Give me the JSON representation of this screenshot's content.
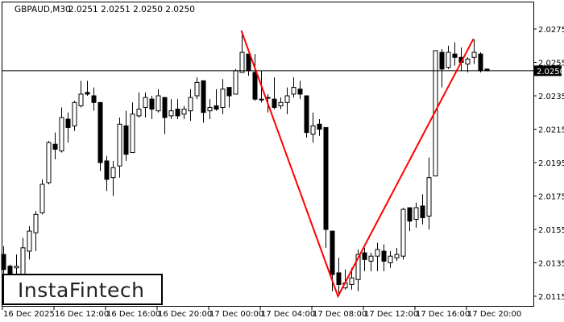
{
  "header": {
    "symbol": "GBPAUD,M30",
    "ohlc": "2.0251 2.0251 2.0250 2.0250"
  },
  "logo": {
    "text": "InstaFintech"
  },
  "current_price": {
    "label": "2.0250",
    "value": 2.025
  },
  "colors": {
    "pattern_line": "#ff0000",
    "bull_body": "#ffffff",
    "bear_body": "#000000",
    "price_label_bg": "#000000"
  },
  "chart_data": {
    "type": "candlestick",
    "title": "",
    "grid": false,
    "ylim": [
      2.01095,
      2.02917
    ],
    "y_ticks": [
      "2.0275",
      "2.0255",
      "2.0235",
      "2.0215",
      "2.0195",
      "2.0175",
      "2.0155",
      "2.0135",
      "2.0115"
    ],
    "x_ticks": [
      "16 Dec 2025",
      "16 Dec 12:00",
      "16 Dec 16:00",
      "16 Dec 20:00",
      "17 Dec 00:00",
      "17 Dec 04:00",
      "17 Dec 08:00",
      "17 Dec 12:00",
      "17 Dec 16:00",
      "17 Dec 20:00"
    ],
    "candle_fields": [
      "time",
      "open",
      "high",
      "low",
      "close"
    ],
    "candles": [
      [
        "16 Dec 08:00",
        2.014,
        2.0145,
        2.0126,
        2.0131
      ],
      [
        "16 Dec 08:30",
        2.0133,
        2.0134,
        2.0124,
        2.0128
      ],
      [
        "16 Dec 09:00",
        2.0132,
        2.014,
        2.0126,
        2.0133
      ],
      [
        "16 Dec 09:30",
        2.0128,
        2.015,
        2.0126,
        2.0144
      ],
      [
        "16 Dec 10:00",
        2.0142,
        2.0157,
        2.0137,
        2.0154
      ],
      [
        "16 Dec 10:30",
        2.0153,
        2.0166,
        2.0142,
        2.0164
      ],
      [
        "16 Dec 11:00",
        2.0165,
        2.0185,
        2.0164,
        2.0182
      ],
      [
        "16 Dec 11:30",
        2.0183,
        2.0208,
        2.0182,
        2.0207
      ],
      [
        "16 Dec 12:00",
        2.0206,
        2.0213,
        2.0197,
        2.0203
      ],
      [
        "16 Dec 12:30",
        2.0202,
        2.0228,
        2.0201,
        2.0222
      ],
      [
        "16 Dec 13:00",
        2.0221,
        2.0225,
        2.0207,
        2.0216
      ],
      [
        "16 Dec 13:30",
        2.0217,
        2.0232,
        2.0214,
        2.0231
      ],
      [
        "16 Dec 14:00",
        2.0229,
        2.0244,
        2.0228,
        2.0236
      ],
      [
        "16 Dec 14:30",
        2.0237,
        2.0244,
        2.0235,
        2.0236
      ],
      [
        "16 Dec 15:00",
        2.0235,
        2.024,
        2.0226,
        2.0231
      ],
      [
        "16 Dec 15:30",
        2.0231,
        2.0231,
        2.019,
        2.0195
      ],
      [
        "16 Dec 16:00",
        2.0196,
        2.0199,
        2.0178,
        2.0185
      ],
      [
        "16 Dec 16:30",
        2.0186,
        2.0196,
        2.0175,
        2.0192
      ],
      [
        "16 Dec 17:00",
        2.0193,
        2.0222,
        2.0186,
        2.0218
      ],
      [
        "16 Dec 17:30",
        2.0217,
        2.0226,
        2.0196,
        2.02
      ],
      [
        "16 Dec 18:00",
        2.0201,
        2.0231,
        2.0201,
        2.0224
      ],
      [
        "16 Dec 18:30",
        2.0223,
        2.0237,
        2.0222,
        2.0227
      ],
      [
        "16 Dec 19:00",
        2.0228,
        2.0237,
        2.0222,
        2.0234
      ],
      [
        "16 Dec 19:30",
        2.0233,
        2.0235,
        2.0221,
        2.0227
      ],
      [
        "16 Dec 20:00",
        2.0226,
        2.0239,
        2.0225,
        2.0235
      ],
      [
        "16 Dec 20:30",
        2.0234,
        2.0234,
        2.0212,
        2.0222
      ],
      [
        "16 Dec 21:00",
        2.0223,
        2.0233,
        2.0221,
        2.0226
      ],
      [
        "16 Dec 21:30",
        2.0227,
        2.0233,
        2.0221,
        2.0223
      ],
      [
        "16 Dec 22:00",
        2.0224,
        2.0229,
        2.0221,
        2.0227
      ],
      [
        "16 Dec 22:30",
        2.0226,
        2.0239,
        2.022,
        2.0234
      ],
      [
        "16 Dec 23:00",
        2.0235,
        2.0246,
        2.0233,
        2.0243
      ],
      [
        "16 Dec 23:30",
        2.0244,
        2.0244,
        2.0219,
        2.0225
      ],
      [
        "17 Dec 00:00",
        2.0226,
        2.0233,
        2.0221,
        2.0228
      ],
      [
        "17 Dec 00:30",
        2.0229,
        2.0239,
        2.0226,
        2.0227
      ],
      [
        "17 Dec 01:00",
        2.0228,
        2.0245,
        2.0224,
        2.0239
      ],
      [
        "17 Dec 01:30",
        2.024,
        2.024,
        2.0228,
        2.0235
      ],
      [
        "17 Dec 02:00",
        2.0236,
        2.0251,
        2.0236,
        2.025
      ],
      [
        "17 Dec 02:30",
        2.0249,
        2.0274,
        2.0249,
        2.0261
      ],
      [
        "17 Dec 03:00",
        2.026,
        2.026,
        2.0247,
        2.025
      ],
      [
        "17 Dec 03:30",
        2.0249,
        2.026,
        2.0232,
        2.0233
      ],
      [
        "17 Dec 04:00",
        2.0233,
        2.025,
        2.0231,
        2.0233
      ],
      [
        "17 Dec 04:30",
        2.0234,
        2.0236,
        2.0225,
        2.0234
      ],
      [
        "17 Dec 05:00",
        2.0233,
        2.0246,
        2.0227,
        2.0228
      ],
      [
        "17 Dec 05:30",
        2.0229,
        2.0234,
        2.0227,
        2.0231
      ],
      [
        "17 Dec 06:00",
        2.0231,
        2.024,
        2.0224,
        2.0235
      ],
      [
        "17 Dec 06:30",
        2.0236,
        2.0246,
        2.0234,
        2.024
      ],
      [
        "17 Dec 07:00",
        2.0239,
        2.0244,
        2.0233,
        2.0236
      ],
      [
        "17 Dec 07:30",
        2.0235,
        2.0235,
        2.021,
        2.0213
      ],
      [
        "17 Dec 08:00",
        2.0212,
        2.0225,
        2.0207,
        2.0217
      ],
      [
        "17 Dec 08:30",
        2.0218,
        2.0221,
        2.0211,
        2.0215
      ],
      [
        "17 Dec 09:00",
        2.0216,
        2.0216,
        2.0144,
        2.0155
      ],
      [
        "17 Dec 09:30",
        2.0154,
        2.0154,
        2.0118,
        2.0128
      ],
      [
        "17 Dec 10:00",
        2.0129,
        2.0138,
        2.0116,
        2.0122
      ],
      [
        "17 Dec 10:30",
        2.012,
        2.0131,
        2.0119,
        2.0123
      ],
      [
        "17 Dec 11:00",
        2.0122,
        2.0132,
        2.0119,
        2.0126
      ],
      [
        "17 Dec 11:30",
        2.0125,
        2.0143,
        2.0118,
        2.014
      ],
      [
        "17 Dec 12:00",
        2.0141,
        2.0144,
        2.013,
        2.0137
      ],
      [
        "17 Dec 12:30",
        2.0136,
        2.0141,
        2.013,
        2.0139
      ],
      [
        "17 Dec 13:00",
        2.0139,
        2.0147,
        2.013,
        2.0143
      ],
      [
        "17 Dec 13:30",
        2.0142,
        2.0146,
        2.013,
        2.0136
      ],
      [
        "17 Dec 14:00",
        2.0135,
        2.0142,
        2.0132,
        2.0139
      ],
      [
        "17 Dec 14:30",
        2.0138,
        2.0144,
        2.0136,
        2.014
      ],
      [
        "17 Dec 15:00",
        2.0139,
        2.0168,
        2.0137,
        2.0167
      ],
      [
        "17 Dec 15:30",
        2.0168,
        2.0168,
        2.0154,
        2.016
      ],
      [
        "17 Dec 16:00",
        2.0161,
        2.0171,
        2.0156,
        2.0168
      ],
      [
        "17 Dec 16:30",
        2.0169,
        2.0176,
        2.0158,
        2.0162
      ],
      [
        "17 Dec 17:00",
        2.0163,
        2.0198,
        2.0155,
        2.0186
      ],
      [
        "17 Dec 17:30",
        2.0187,
        2.0262,
        2.0187,
        2.0262
      ],
      [
        "17 Dec 18:00",
        2.0261,
        2.0263,
        2.024,
        2.0251
      ],
      [
        "17 Dec 18:30",
        2.0252,
        2.0265,
        2.0251,
        2.0261
      ],
      [
        "17 Dec 19:00",
        2.026,
        2.0267,
        2.0253,
        2.0258
      ],
      [
        "17 Dec 19:30",
        2.0258,
        2.0264,
        2.025,
        2.0255
      ],
      [
        "17 Dec 20:00",
        2.0254,
        2.0258,
        2.0249,
        2.0257
      ],
      [
        "17 Dec 20:30",
        2.0258,
        2.0269,
        2.0254,
        2.0261
      ],
      [
        "17 Dec 21:00",
        2.026,
        2.0261,
        2.0249,
        2.025
      ],
      [
        "17 Dec 21:30",
        2.0251,
        2.0251,
        2.025,
        2.025
      ]
    ],
    "pattern_line": [
      {
        "time": "17 Dec 02:30",
        "price": 2.0274
      },
      {
        "time": "17 Dec 10:00",
        "price": 2.0115
      },
      {
        "time": "17 Dec 20:30",
        "price": 2.0269
      }
    ]
  }
}
